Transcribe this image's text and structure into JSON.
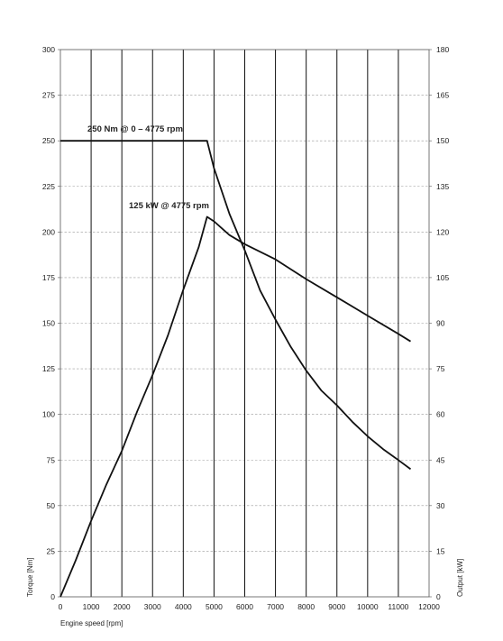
{
  "chart_data": {
    "type": "line",
    "title": "",
    "xlabel": "Engine speed [rpm]",
    "ylabel_left": "Torque [Nm]",
    "ylabel_right": "Output [kW]",
    "xlim": [
      0,
      12000
    ],
    "ylim_left": [
      0,
      300
    ],
    "ylim_right": [
      0,
      180
    ],
    "x_ticks": [
      "0",
      "1000",
      "2000",
      "3000",
      "4000",
      "5000",
      "6000",
      "7000",
      "8000",
      "9000",
      "10000",
      "11000",
      "12000"
    ],
    "y_ticks_left": [
      "0",
      "25",
      "50",
      "75",
      "100",
      "125",
      "150",
      "175",
      "200",
      "225",
      "250",
      "275",
      "300"
    ],
    "y_ticks_right": [
      "0",
      "15",
      "30",
      "45",
      "60",
      "75",
      "90",
      "105",
      "120",
      "135",
      "150",
      "165",
      "180"
    ],
    "grid": {
      "vertical": "solid",
      "horizontal": "dashed"
    },
    "annotations": [
      {
        "text": "250 Nm @ 0 – 4775 rpm"
      },
      {
        "text": "125 kW @ 4775 rpm"
      }
    ],
    "series": [
      {
        "axis": "left",
        "color": "#111111",
        "x": [
          0,
          1000,
          2000,
          3000,
          4000,
          4775,
          5000,
          5500,
          6000,
          6500,
          7000,
          7500,
          8000,
          8500,
          9000,
          9500,
          10000,
          10500,
          11000,
          11400
        ],
        "y": [
          250,
          250,
          250,
          250,
          250,
          250,
          235,
          210,
          190,
          168,
          152,
          137,
          124,
          113,
          105,
          96,
          88,
          81,
          75,
          70
        ]
      },
      {
        "axis": "right",
        "color": "#111111",
        "x": [
          0,
          500,
          1000,
          1500,
          2000,
          2500,
          3000,
          3500,
          4000,
          4500,
          4775,
          5000,
          5500,
          6000,
          7000,
          8000,
          9000,
          10000,
          11000,
          11400
        ],
        "y": [
          0,
          12,
          25,
          37,
          48,
          61,
          73,
          86,
          101,
          115,
          125,
          123.5,
          119,
          116,
          111,
          104.5,
          98.5,
          92.5,
          86.5,
          84
        ]
      }
    ]
  }
}
